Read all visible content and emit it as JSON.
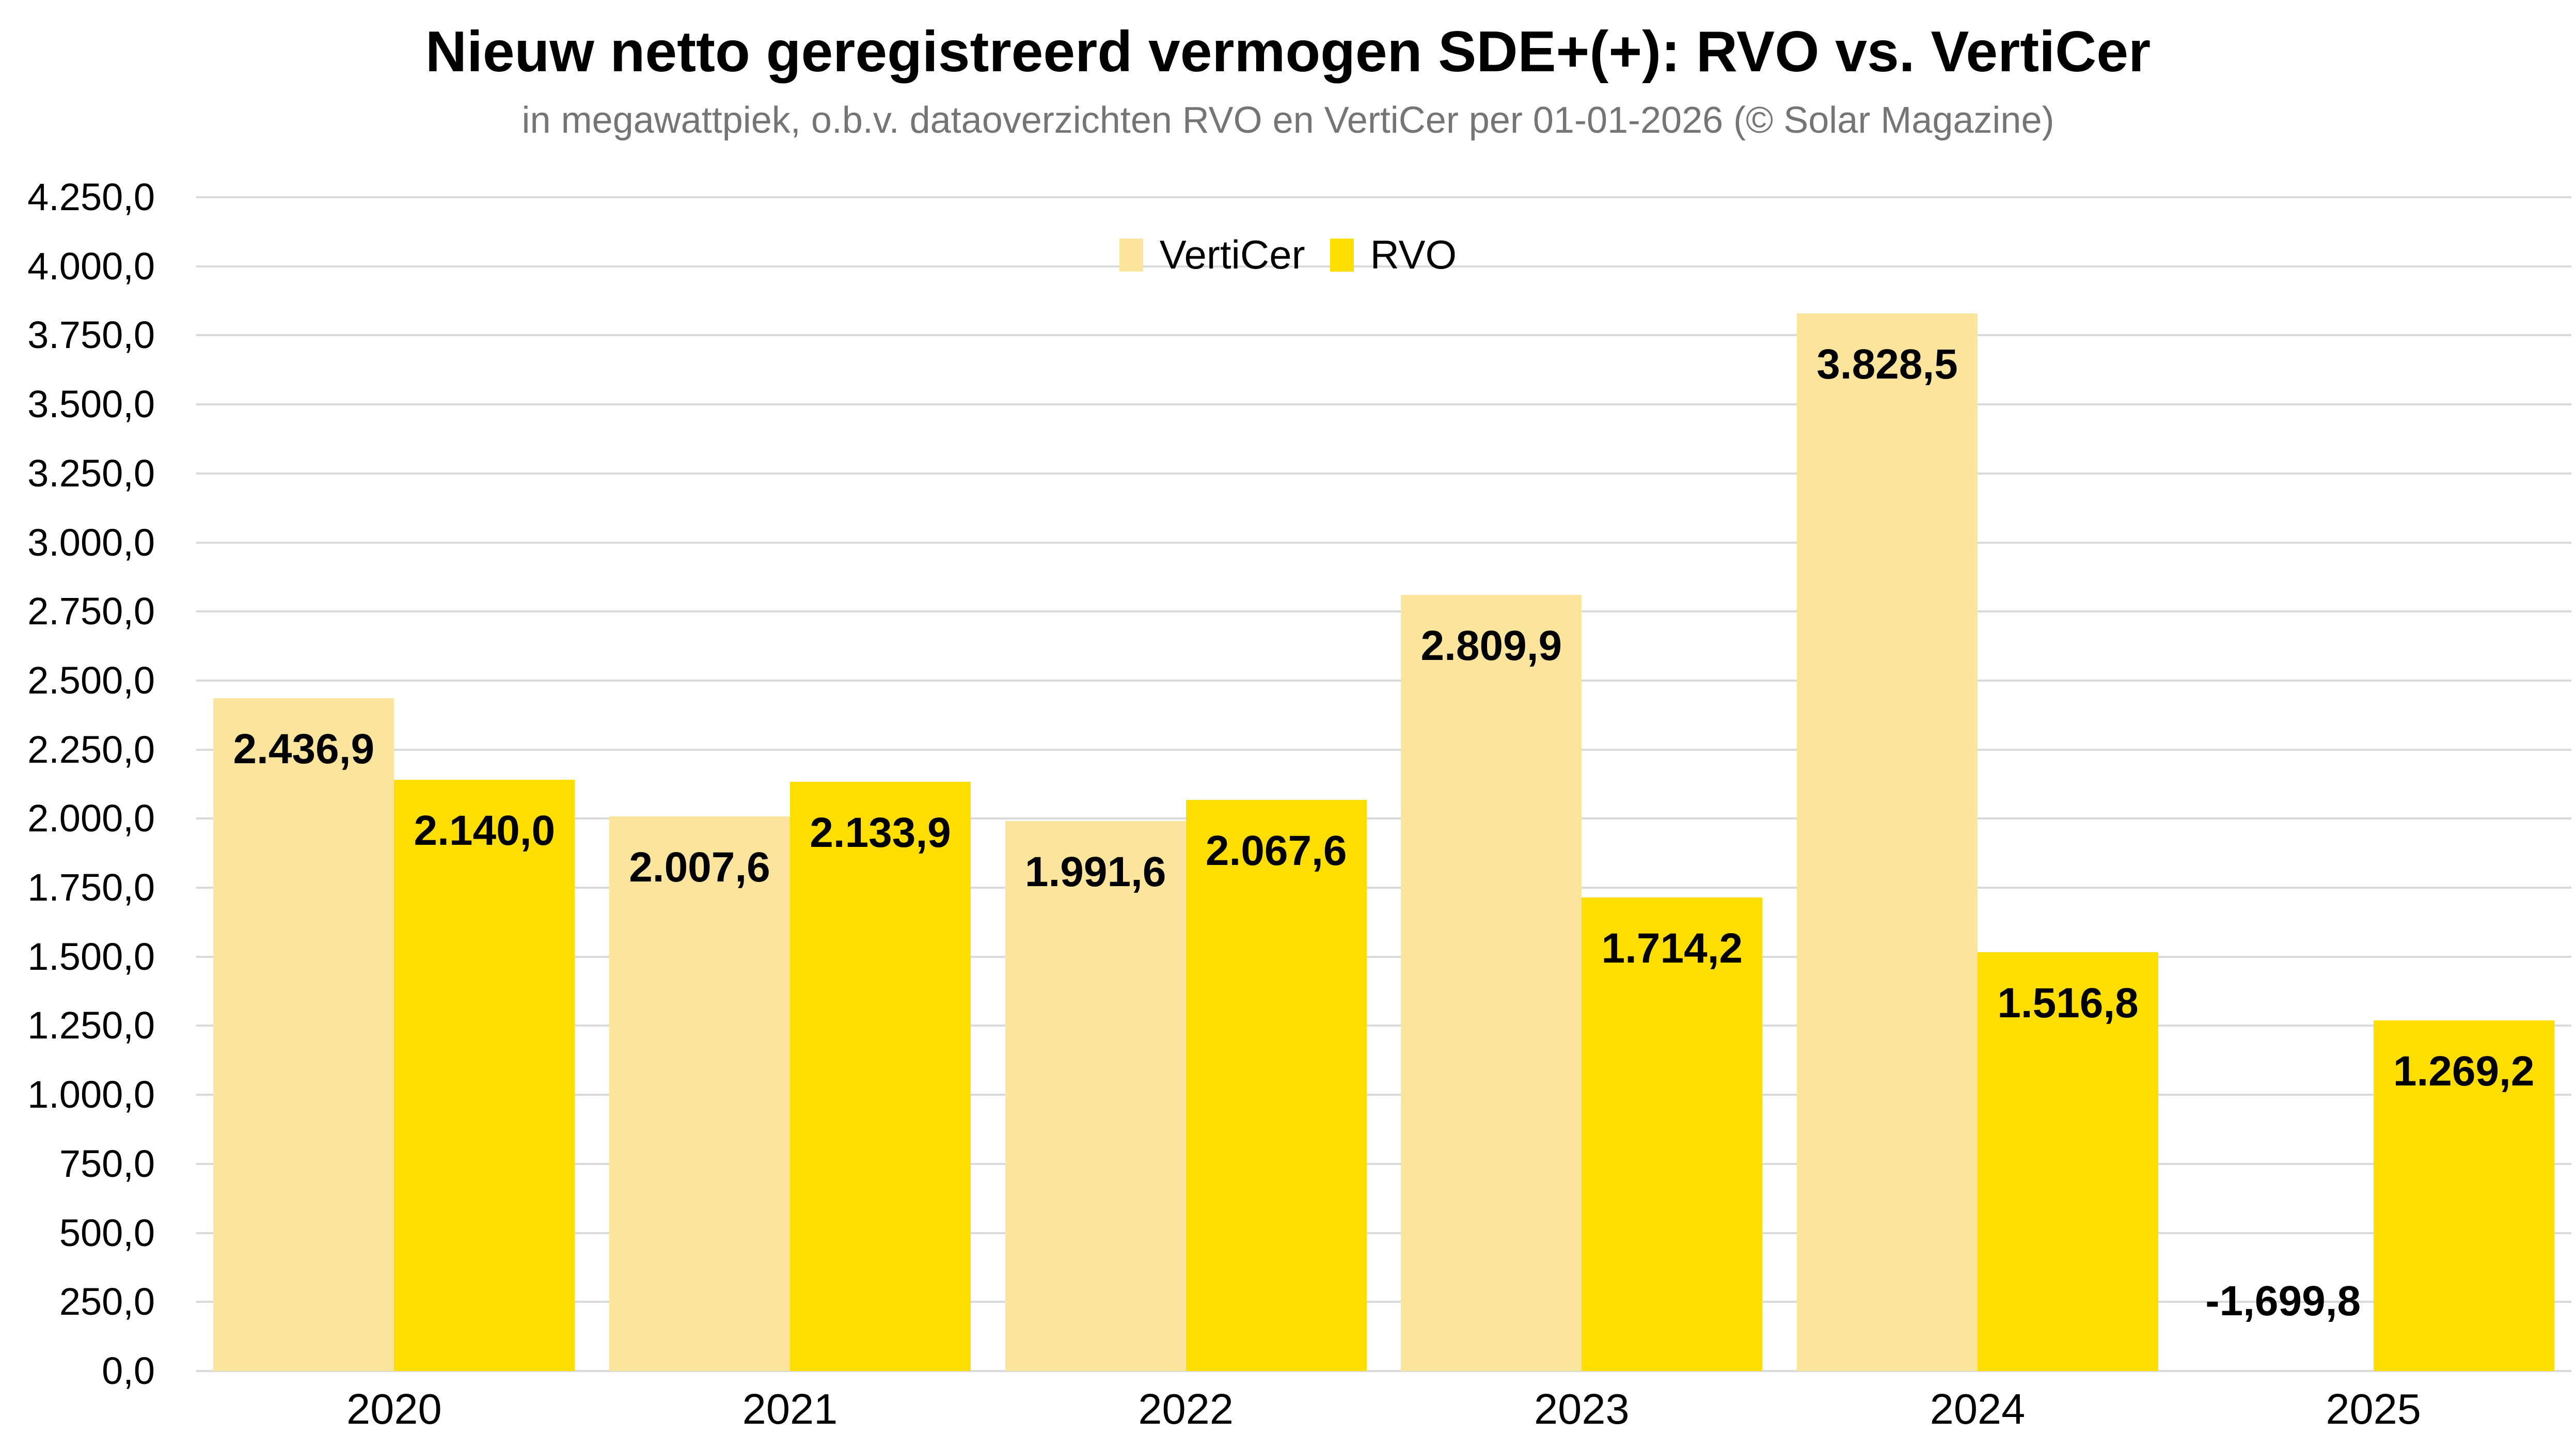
{
  "header": {
    "title": "Nieuw netto geregistreerd vermogen SDE+(+): RVO vs. VertiCer",
    "subtitle": "in megawattpiek, o.b.v. dataoverzichten RVO en VertiCer per 01-01-2026 (© Solar Magazine)"
  },
  "colors": {
    "verticer": "#FBE49C",
    "rvo": "#FEDD00",
    "gridline": "#DADADA",
    "subtitle_text": "#757575",
    "label_text": "#000000",
    "background": "#FFFFFF"
  },
  "chart_data": {
    "type": "bar",
    "title": "Nieuw netto geregistreerd vermogen SDE+(+): RVO vs. VertiCer",
    "subtitle": "in megawattpiek, o.b.v. dataoverzichten RVO en VertiCer per 01-01-2026 (© Solar Magazine)",
    "categories": [
      "2020",
      "2021",
      "2022",
      "2023",
      "2024",
      "2025"
    ],
    "series": [
      {
        "name": "VertiCer",
        "color": "#FBE49C",
        "values": [
          2436.9,
          2007.6,
          1991.6,
          2809.9,
          3828.5,
          -1699.8
        ],
        "labels": [
          "2.436,9",
          "2.007,6",
          "1.991,6",
          "2.809,9",
          "3.828,5",
          "-1,699,8"
        ]
      },
      {
        "name": "RVO",
        "color": "#FEDD00",
        "values": [
          2140.0,
          2133.9,
          2067.6,
          1714.2,
          1516.8,
          1269.2
        ],
        "labels": [
          "2.140,0",
          "2.133,9",
          "2.067,6",
          "1.714,2",
          "1.516,8",
          "1.269,2"
        ]
      }
    ],
    "xlabel": "",
    "ylabel": "",
    "ylim": [
      0,
      4250
    ],
    "ytick_step": 250,
    "ytick_labels": [
      "0,0",
      "250,0",
      "500,0",
      "750,0",
      "1.000,0",
      "1.250,0",
      "1.500,0",
      "1.750,0",
      "2.000,0",
      "2.250,0",
      "2.500,0",
      "2.750,0",
      "3.000,0",
      "3.250,0",
      "3.500,0",
      "3.750,0",
      "4.000,0",
      "4.250,0"
    ],
    "grid": true,
    "legend_position": "top-center"
  }
}
